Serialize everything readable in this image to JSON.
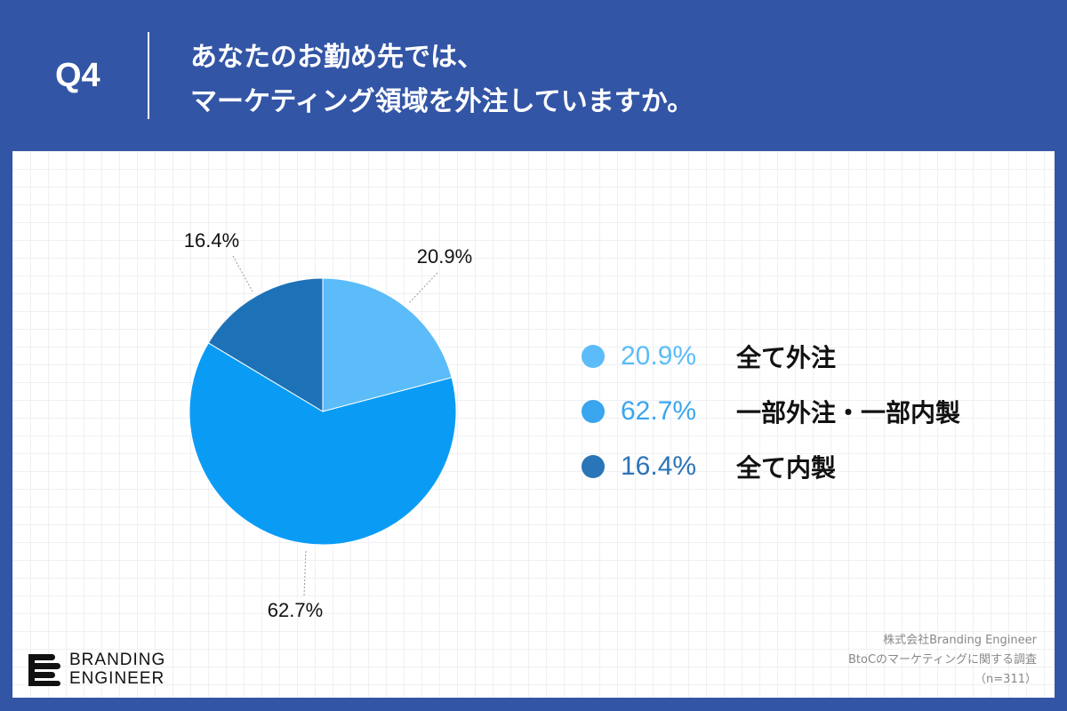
{
  "header": {
    "question_no": "Q4",
    "title_line1": "あなたのお勤め先では、",
    "title_line2": "マーケティング領域を外注していますか。"
  },
  "chart_data": {
    "type": "pie",
    "categories": [
      "全て外注",
      "一部外注・一部内製",
      "全て内製"
    ],
    "values": [
      20.9,
      62.7,
      16.4
    ],
    "labels": [
      "20.9%",
      "62.7%",
      "16.4%"
    ],
    "colors": [
      "#5bbcf9",
      "#0a9cf5",
      "#1d72b7"
    ],
    "start": "12 o'clock, clockwise",
    "legend_position": "right"
  },
  "legend": [
    {
      "value": "20.9%",
      "label": "全て外注",
      "color": "#5bbcf9"
    },
    {
      "value": "62.7%",
      "label": "一部外注・一部内製",
      "color": "#3aa5ef"
    },
    {
      "value": "16.4%",
      "label": "全て内製",
      "color": "#2a74b8"
    }
  ],
  "logo": {
    "line1": "BRANDING",
    "line2": "ENGINEER"
  },
  "source": {
    "line1": "株式会社Branding Engineer",
    "line2": "BtoCのマーケティングに関する調査",
    "line3": "（n=311）"
  },
  "colors": {
    "background": "#3355a5",
    "card": "#ffffff"
  }
}
